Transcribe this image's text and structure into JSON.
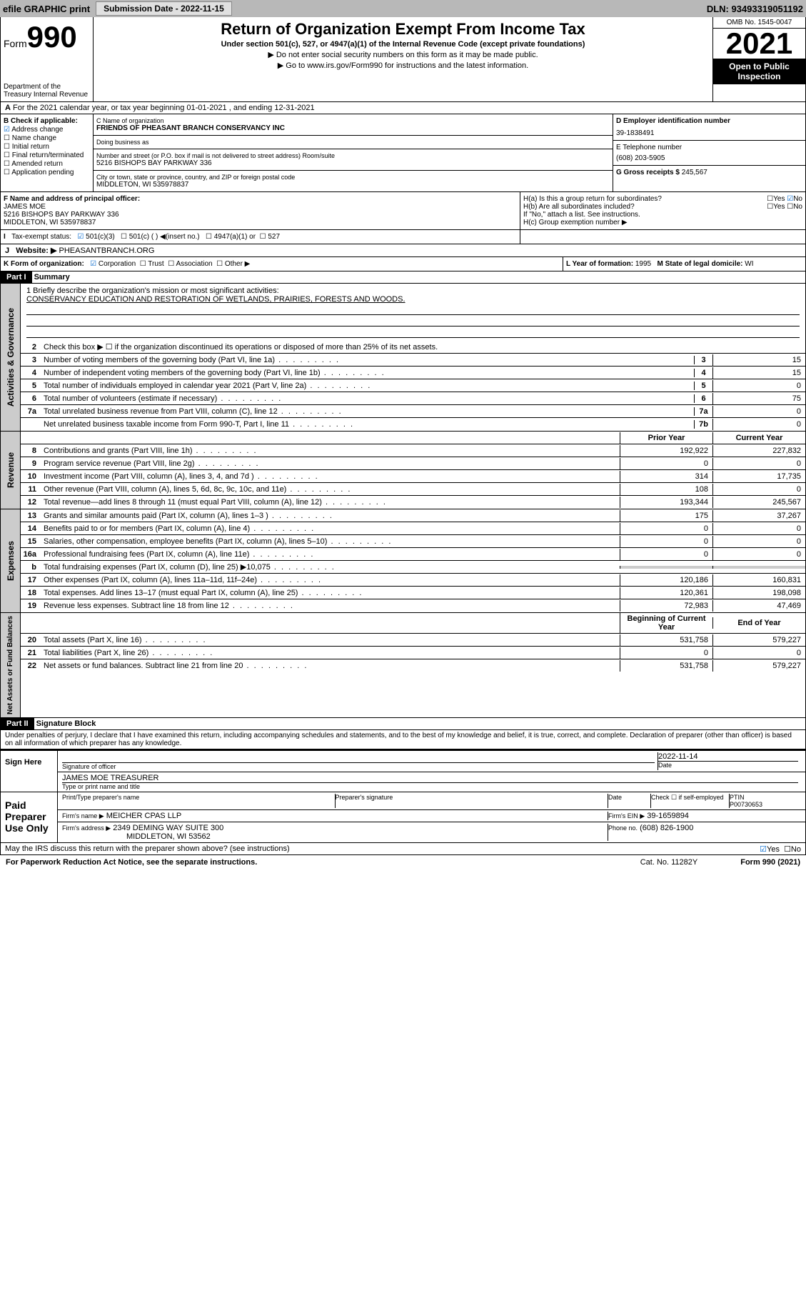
{
  "top": {
    "efile": "efile GRAPHIC print",
    "subdate_lbl": "Submission Date - 2022-11-15",
    "dln": "DLN: 93493319051192"
  },
  "header": {
    "form": "Form",
    "num": "990",
    "dept": "Department of the Treasury Internal Revenue",
    "title": "Return of Organization Exempt From Income Tax",
    "sub": "Under section 501(c), 527, or 4947(a)(1) of the Internal Revenue Code (except private foundations)",
    "note1": "▶ Do not enter social security numbers on this form as it may be made public.",
    "note2": "▶ Go to www.irs.gov/Form990 for instructions and the latest information.",
    "omb": "OMB No. 1545-0047",
    "year": "2021",
    "otp": "Open to Public Inspection"
  },
  "periodA": "For the 2021 calendar year, or tax year beginning 01-01-2021   , and ending 12-31-2021",
  "blockB": {
    "hdr": "B Check if applicable:",
    "items": [
      "Address change",
      "Name change",
      "Initial return",
      "Final return/terminated",
      "Amended return",
      "Application pending"
    ],
    "checked": 0
  },
  "blockC": {
    "name_lbl": "C Name of organization",
    "name": "FRIENDS OF PHEASANT BRANCH CONSERVANCY INC",
    "dba_lbl": "Doing business as",
    "addr_lbl": "Number and street (or P.O. box if mail is not delivered to street address)      Room/suite",
    "addr": "5216 BISHOPS BAY PARKWAY 336",
    "city_lbl": "City or town, state or province, country, and ZIP or foreign postal code",
    "city": "MIDDLETON, WI  535978837"
  },
  "blockD": {
    "lbl": "D Employer identification number",
    "val": "39-1838491"
  },
  "blockE": {
    "lbl": "E Telephone number",
    "val": "(608) 203-5905"
  },
  "blockG": {
    "lbl": "G Gross receipts $",
    "val": "245,567"
  },
  "blockF": {
    "lbl": "F  Name and address of principal officer:",
    "name": "JAMES MOE",
    "addr": "5216 BISHOPS BAY PARKWAY 336",
    "city": "MIDDLETON, WI  535978837"
  },
  "blockH": {
    "a": "H(a)  Is this a group return for subordinates?",
    "b": "H(b)  Are all subordinates included?",
    "note": "If \"No,\" attach a list. See instructions.",
    "c": "H(c)  Group exemption number ▶"
  },
  "rowI": {
    "lbl": "Tax-exempt status:",
    "opts": [
      "501(c)(3)",
      "501(c) (  ) ◀(insert no.)",
      "4947(a)(1) or",
      "527"
    ]
  },
  "rowJ": {
    "lbl": "Website: ▶",
    "val": "PHEASANTBRANCH.ORG"
  },
  "rowK": {
    "lbl": "K Form of organization:",
    "opts": [
      "Corporation",
      "Trust",
      "Association",
      "Other ▶"
    ]
  },
  "rowL": {
    "lbl": "L Year of formation:",
    "val": "1995"
  },
  "rowM": {
    "lbl": "M State of legal domicile:",
    "val": "WI"
  },
  "part1": {
    "lbl": "Part I",
    "title": "Summary"
  },
  "mission": {
    "lbl": "1   Briefly describe the organization's mission or most significant activities:",
    "text": "CONSERVANCY EDUCATION AND RESTORATION OF WETLANDS, PRAIRIES, FORESTS AND WOODS."
  },
  "gov": {
    "label": "Activities & Governance",
    "l2": "Check this box ▶ ☐  if the organization discontinued its operations or disposed of more than 25% of its net assets.",
    "rows": [
      {
        "n": "3",
        "t": "Number of voting members of the governing body (Part VI, line 1a)",
        "nb": "3",
        "v": "15"
      },
      {
        "n": "4",
        "t": "Number of independent voting members of the governing body (Part VI, line 1b)",
        "nb": "4",
        "v": "15"
      },
      {
        "n": "5",
        "t": "Total number of individuals employed in calendar year 2021 (Part V, line 2a)",
        "nb": "5",
        "v": "0"
      },
      {
        "n": "6",
        "t": "Total number of volunteers (estimate if necessary)",
        "nb": "6",
        "v": "75"
      },
      {
        "n": "7a",
        "t": "Total unrelated business revenue from Part VIII, column (C), line 12",
        "nb": "7a",
        "v": "0"
      },
      {
        "n": "",
        "t": "Net unrelated business taxable income from Form 990-T, Part I, line 11",
        "nb": "7b",
        "v": "0"
      }
    ]
  },
  "rev": {
    "label": "Revenue",
    "hdr": {
      "c1": "Prior Year",
      "c2": "Current Year"
    },
    "rows": [
      {
        "n": "8",
        "t": "Contributions and grants (Part VIII, line 1h)",
        "c1": "192,922",
        "c2": "227,832"
      },
      {
        "n": "9",
        "t": "Program service revenue (Part VIII, line 2g)",
        "c1": "0",
        "c2": "0"
      },
      {
        "n": "10",
        "t": "Investment income (Part VIII, column (A), lines 3, 4, and 7d )",
        "c1": "314",
        "c2": "17,735"
      },
      {
        "n": "11",
        "t": "Other revenue (Part VIII, column (A), lines 5, 6d, 8c, 9c, 10c, and 11e)",
        "c1": "108",
        "c2": "0"
      },
      {
        "n": "12",
        "t": "Total revenue—add lines 8 through 11 (must equal Part VIII, column (A), line 12)",
        "c1": "193,344",
        "c2": "245,567"
      }
    ]
  },
  "exp": {
    "label": "Expenses",
    "rows": [
      {
        "n": "13",
        "t": "Grants and similar amounts paid (Part IX, column (A), lines 1–3 )",
        "c1": "175",
        "c2": "37,267"
      },
      {
        "n": "14",
        "t": "Benefits paid to or for members (Part IX, column (A), line 4)",
        "c1": "0",
        "c2": "0"
      },
      {
        "n": "15",
        "t": "Salaries, other compensation, employee benefits (Part IX, column (A), lines 5–10)",
        "c1": "0",
        "c2": "0"
      },
      {
        "n": "16a",
        "t": "Professional fundraising fees (Part IX, column (A), line 11e)",
        "c1": "0",
        "c2": "0"
      },
      {
        "n": "b",
        "t": "Total fundraising expenses (Part IX, column (D), line 25) ▶10,075",
        "c1": "",
        "c2": "",
        "shade": true
      },
      {
        "n": "17",
        "t": "Other expenses (Part IX, column (A), lines 11a–11d, 11f–24e)",
        "c1": "120,186",
        "c2": "160,831"
      },
      {
        "n": "18",
        "t": "Total expenses. Add lines 13–17 (must equal Part IX, column (A), line 25)",
        "c1": "120,361",
        "c2": "198,098"
      },
      {
        "n": "19",
        "t": "Revenue less expenses. Subtract line 18 from line 12",
        "c1": "72,983",
        "c2": "47,469"
      }
    ]
  },
  "na": {
    "label": "Net Assets or Fund Balances",
    "hdr": {
      "c1": "Beginning of Current Year",
      "c2": "End of Year"
    },
    "rows": [
      {
        "n": "20",
        "t": "Total assets (Part X, line 16)",
        "c1": "531,758",
        "c2": "579,227"
      },
      {
        "n": "21",
        "t": "Total liabilities (Part X, line 26)",
        "c1": "0",
        "c2": "0"
      },
      {
        "n": "22",
        "t": "Net assets or fund balances. Subtract line 21 from line 20",
        "c1": "531,758",
        "c2": "579,227"
      }
    ]
  },
  "part2": {
    "lbl": "Part II",
    "title": "Signature Block"
  },
  "decl": "Under penalties of perjury, I declare that I have examined this return, including accompanying schedules and statements, and to the best of my knowledge and belief, it is true, correct, and complete. Declaration of preparer (other than officer) is based on all information of which preparer has any knowledge.",
  "sign": {
    "here": "Sign Here",
    "sig_lbl": "Signature of officer",
    "date_lbl": "Date",
    "date": "2022-11-14",
    "name": "JAMES MOE  TREASURER",
    "name_lbl": "Type or print name and title"
  },
  "prep": {
    "lbl": "Paid Preparer Use Only",
    "h1": "Print/Type preparer's name",
    "h2": "Preparer's signature",
    "h3": "Date",
    "h4": "Check ☐ if self-employed",
    "h5": "PTIN",
    "ptin": "P00730653",
    "firm_lbl": "Firm's name   ▶",
    "firm": "MEICHER CPAS LLP",
    "ein_lbl": "Firm's EIN ▶",
    "ein": "39-1659894",
    "addr_lbl": "Firm's address ▶",
    "addr": "2349 DEMING WAY SUITE 300",
    "city": "MIDDLETON, WI  53562",
    "ph_lbl": "Phone no.",
    "ph": "(608) 826-1900"
  },
  "discuss": "May the IRS discuss this return with the preparer shown above? (see instructions)",
  "foot": {
    "pra": "For Paperwork Reduction Act Notice, see the separate instructions.",
    "cat": "Cat. No. 11282Y",
    "form": "Form 990 (2021)"
  }
}
